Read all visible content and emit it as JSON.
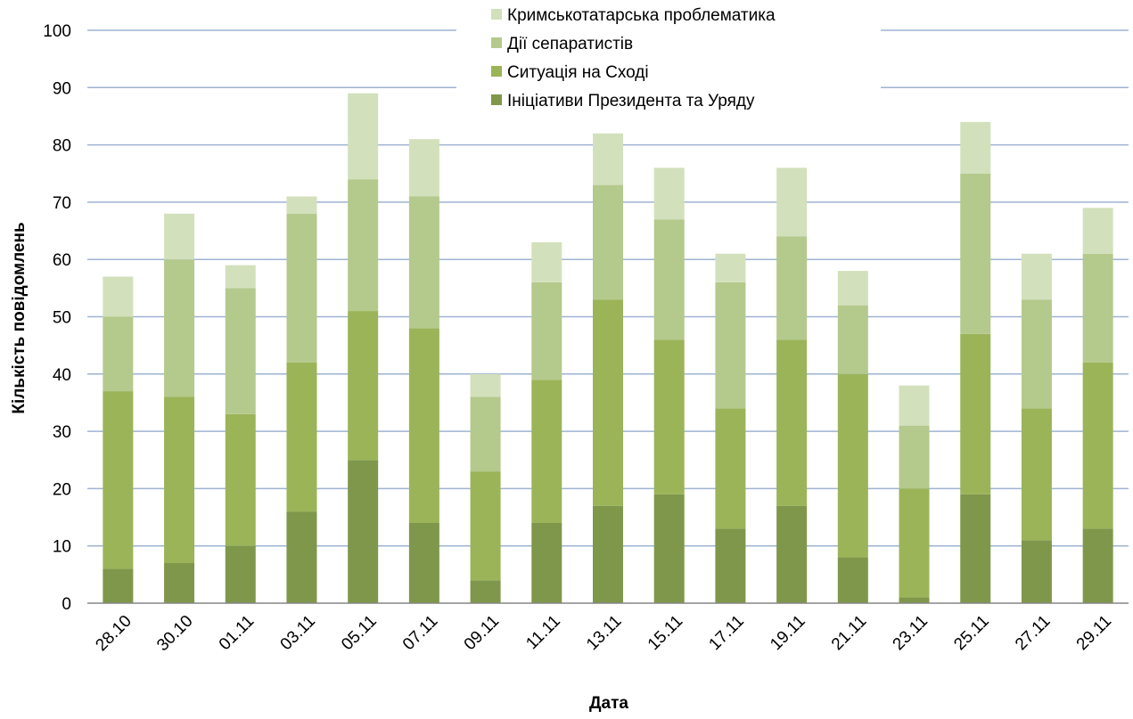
{
  "chart_data": {
    "type": "bar",
    "stacked": true,
    "xlabel": "Дата",
    "ylabel": "Кількість повідомлень",
    "ylim": [
      0,
      100
    ],
    "yticks": [
      0,
      10,
      20,
      30,
      40,
      50,
      60,
      70,
      80,
      90,
      100
    ],
    "grid": true,
    "legend_position": "top-right",
    "categories": [
      "28.10",
      "30.10",
      "01.11",
      "03.11",
      "05.11",
      "07.11",
      "09.11",
      "11.11",
      "13.11",
      "15.11",
      "17.11",
      "19.11",
      "21.11",
      "23.11",
      "25.11",
      "27.11",
      "29.11"
    ],
    "series": [
      {
        "name": "Ініціативи Президента та Уряду",
        "color": "#7f974a",
        "values": [
          6,
          7,
          10,
          16,
          25,
          14,
          4,
          14,
          17,
          19,
          13,
          17,
          8,
          1,
          19,
          11,
          13
        ]
      },
      {
        "name": "Ситуація на Сході",
        "color": "#9bb458",
        "values": [
          31,
          29,
          23,
          26,
          26,
          34,
          19,
          25,
          36,
          27,
          21,
          29,
          32,
          19,
          28,
          23,
          29
        ]
      },
      {
        "name": "Дії сепаратистів",
        "color": "#b4c98c",
        "values": [
          13,
          24,
          22,
          26,
          23,
          23,
          13,
          17,
          20,
          21,
          22,
          18,
          12,
          11,
          28,
          19,
          19
        ]
      },
      {
        "name": "Кримськотатарська проблематика",
        "color": "#d3e0bc",
        "values": [
          7,
          8,
          4,
          3,
          15,
          10,
          4,
          7,
          9,
          9,
          5,
          12,
          6,
          7,
          9,
          8,
          8
        ]
      }
    ],
    "legend_order": [
      3,
      2,
      1,
      0
    ]
  }
}
